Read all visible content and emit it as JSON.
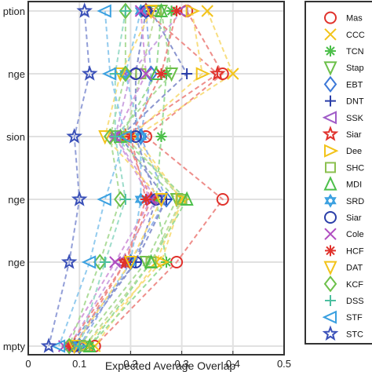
{
  "chart_data": {
    "type": "scatter",
    "title": "",
    "xlabel": "Expected Average Overlap",
    "ylabel": "",
    "xlim": [
      0,
      0.5
    ],
    "xticks": [
      0,
      0.1,
      0.2,
      0.3,
      0.4,
      0.5
    ],
    "xtick_labels": [
      "0",
      "0.1",
      "0.2",
      "0.3",
      "0.4",
      "0.5"
    ],
    "grid": true,
    "legend_position": "right",
    "categories": [
      "ption",
      "nge",
      "sion",
      "nge",
      "nge",
      "mpty"
    ],
    "series": [
      {
        "name": "Mas",
        "marker": "circle",
        "color": "#e0312b",
        "values": [
          0.31,
          0.38,
          0.23,
          0.38,
          0.29,
          0.13
        ]
      },
      {
        "name": "CCC",
        "marker": "x",
        "color": "#f2c31a",
        "values": [
          0.35,
          0.4,
          0.21,
          0.3,
          0.25,
          0.13
        ]
      },
      {
        "name": "TCN",
        "marker": "asterisk",
        "color": "#4cbf4a",
        "values": [
          0.28,
          0.27,
          0.26,
          0.25,
          0.27,
          0.12
        ]
      },
      {
        "name": "Stap",
        "marker": "triangle-down",
        "color": "#6cc04a",
        "values": [
          0.26,
          0.28,
          0.17,
          0.29,
          0.23,
          0.1
        ]
      },
      {
        "name": "EBT",
        "marker": "diamond",
        "color": "#3c78d8",
        "values": [
          0.23,
          0.24,
          0.22,
          0.27,
          0.2,
          0.1
        ]
      },
      {
        "name": "DNT",
        "marker": "plus",
        "color": "#2a3ea8",
        "values": [
          0.24,
          0.31,
          0.18,
          0.27,
          0.21,
          0.08
        ]
      },
      {
        "name": "SSK",
        "marker": "triangle-left",
        "color": "#a05cc8",
        "values": [
          0.3,
          0.2,
          0.17,
          0.25,
          0.18,
          0.08
        ]
      },
      {
        "name": "Siar",
        "marker": "star",
        "color": "#e0312b",
        "values": [
          0.23,
          0.37,
          0.19,
          0.24,
          0.19,
          0.09
        ]
      },
      {
        "name": "Dee",
        "marker": "triangle-right",
        "color": "#f2c31a",
        "values": [
          0.32,
          0.34,
          0.2,
          0.3,
          0.26,
          0.11
        ]
      },
      {
        "name": "SHC",
        "marker": "square",
        "color": "#8cc050",
        "values": [
          0.25,
          0.22,
          0.19,
          0.3,
          0.24,
          0.11
        ]
      },
      {
        "name": "MDI",
        "marker": "triangle-up",
        "color": "#4cbf4a",
        "values": [
          0.26,
          0.25,
          0.18,
          0.31,
          0.24,
          0.12
        ]
      },
      {
        "name": "SRD",
        "marker": "hexagram",
        "color": "#3aa0e0",
        "values": [
          0.22,
          0.19,
          0.22,
          0.22,
          0.2,
          0.09
        ]
      },
      {
        "name": "Siar",
        "marker": "circle",
        "color": "#2a3ea8",
        "values": [
          0.23,
          0.21,
          0.21,
          0.25,
          0.21,
          0.09
        ]
      },
      {
        "name": "Cole",
        "marker": "x",
        "color": "#b04cc0",
        "values": [
          0.22,
          0.23,
          0.17,
          0.24,
          0.17,
          0.07
        ]
      },
      {
        "name": "HCF",
        "marker": "asterisk",
        "color": "#e0312b",
        "values": [
          0.29,
          0.26,
          0.2,
          0.23,
          0.19,
          0.08
        ]
      },
      {
        "name": "DAT",
        "marker": "triangle-down",
        "color": "#f2c31a",
        "values": [
          0.24,
          0.18,
          0.15,
          0.26,
          0.2,
          0.09
        ]
      },
      {
        "name": "KCF",
        "marker": "diamond",
        "color": "#6cc04a",
        "values": [
          0.19,
          0.19,
          0.16,
          0.18,
          0.14,
          0.08
        ]
      },
      {
        "name": "DSS",
        "marker": "plus",
        "color": "#4cbfa0",
        "values": [
          0.19,
          0.17,
          0.17,
          0.19,
          0.15,
          0.1
        ]
      },
      {
        "name": "STF",
        "marker": "triangle-left",
        "color": "#3aa0e0",
        "values": [
          0.15,
          0.16,
          0.19,
          0.15,
          0.12,
          0.06
        ]
      },
      {
        "name": "STC",
        "marker": "star",
        "color": "#3a50b8",
        "values": [
          0.11,
          0.12,
          0.09,
          0.1,
          0.08,
          0.04
        ]
      }
    ]
  }
}
